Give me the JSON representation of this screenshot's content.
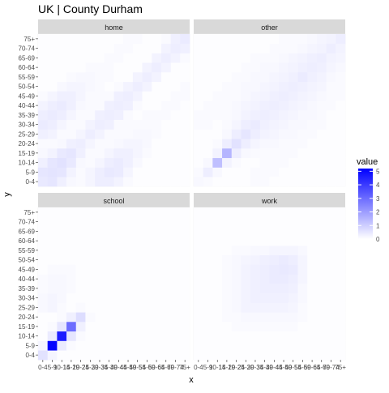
{
  "chart_data": {
    "type": "heatmap",
    "title": "UK | County Durham",
    "xlabel": "x",
    "ylabel": "y",
    "facets": [
      "home",
      "other",
      "school",
      "work"
    ],
    "age_groups": [
      "0-4",
      "5-9",
      "10-14",
      "15-19",
      "20-24",
      "25-29",
      "30-34",
      "35-39",
      "40-44",
      "45-49",
      "50-54",
      "55-59",
      "60-64",
      "65-69",
      "70-74",
      "75+"
    ],
    "legend": {
      "title": "value",
      "ticks": [
        0,
        1,
        2,
        3,
        4,
        5
      ],
      "low_color": "#ffffff",
      "high_color": "#0000ff",
      "min": 0,
      "max": 5.2
    },
    "matrices": {
      "home": [
        [
          0.45,
          0.5,
          0.3,
          0.15,
          0.1,
          0.2,
          0.35,
          0.35,
          0.25,
          0.1,
          0.05,
          0.05,
          0.05,
          0.05,
          0.05,
          0.05
        ],
        [
          0.5,
          0.55,
          0.5,
          0.25,
          0.1,
          0.2,
          0.35,
          0.45,
          0.4,
          0.2,
          0.05,
          0.05,
          0.05,
          0.05,
          0.05,
          0.05
        ],
        [
          0.3,
          0.5,
          0.6,
          0.45,
          0.15,
          0.1,
          0.2,
          0.35,
          0.4,
          0.3,
          0.15,
          0.05,
          0.05,
          0.05,
          0.05,
          0.05
        ],
        [
          0.15,
          0.25,
          0.45,
          0.5,
          0.3,
          0.1,
          0.1,
          0.2,
          0.3,
          0.3,
          0.2,
          0.1,
          0.05,
          0.05,
          0.05,
          0.05
        ],
        [
          0.1,
          0.1,
          0.15,
          0.3,
          0.35,
          0.2,
          0.1,
          0.1,
          0.15,
          0.2,
          0.2,
          0.15,
          0.05,
          0.05,
          0.05,
          0.05
        ],
        [
          0.3,
          0.25,
          0.1,
          0.1,
          0.2,
          0.35,
          0.25,
          0.1,
          0.1,
          0.1,
          0.15,
          0.15,
          0.1,
          0.05,
          0.05,
          0.05
        ],
        [
          0.4,
          0.35,
          0.2,
          0.1,
          0.1,
          0.25,
          0.35,
          0.3,
          0.1,
          0.1,
          0.1,
          0.1,
          0.1,
          0.05,
          0.05,
          0.05
        ],
        [
          0.35,
          0.4,
          0.35,
          0.2,
          0.1,
          0.1,
          0.3,
          0.35,
          0.3,
          0.1,
          0.05,
          0.1,
          0.1,
          0.1,
          0.05,
          0.05
        ],
        [
          0.25,
          0.35,
          0.4,
          0.3,
          0.15,
          0.1,
          0.1,
          0.3,
          0.35,
          0.3,
          0.1,
          0.05,
          0.05,
          0.1,
          0.1,
          0.05
        ],
        [
          0.1,
          0.2,
          0.3,
          0.3,
          0.2,
          0.1,
          0.1,
          0.1,
          0.3,
          0.35,
          0.25,
          0.05,
          0.05,
          0.05,
          0.1,
          0.1
        ],
        [
          0.05,
          0.05,
          0.15,
          0.2,
          0.2,
          0.15,
          0.1,
          0.05,
          0.1,
          0.25,
          0.35,
          0.25,
          0.05,
          0.05,
          0.05,
          0.1
        ],
        [
          0.05,
          0.05,
          0.05,
          0.1,
          0.15,
          0.15,
          0.1,
          0.1,
          0.05,
          0.05,
          0.25,
          0.35,
          0.25,
          0.05,
          0.05,
          0.05
        ],
        [
          0.05,
          0.05,
          0.05,
          0.05,
          0.05,
          0.1,
          0.1,
          0.1,
          0.05,
          0.05,
          0.05,
          0.25,
          0.35,
          0.25,
          0.05,
          0.05
        ],
        [
          0.05,
          0.05,
          0.05,
          0.05,
          0.05,
          0.05,
          0.05,
          0.1,
          0.1,
          0.05,
          0.05,
          0.05,
          0.25,
          0.35,
          0.25,
          0.1
        ],
        [
          0.05,
          0.05,
          0.05,
          0.05,
          0.05,
          0.05,
          0.05,
          0.05,
          0.1,
          0.1,
          0.05,
          0.05,
          0.05,
          0.25,
          0.35,
          0.3
        ],
        [
          0.05,
          0.05,
          0.05,
          0.05,
          0.05,
          0.05,
          0.05,
          0.05,
          0.05,
          0.1,
          0.1,
          0.05,
          0.05,
          0.1,
          0.3,
          0.4
        ]
      ],
      "other": [
        [
          0.15,
          0.1,
          0.05,
          0.05,
          0.05,
          0.05,
          0.1,
          0.1,
          0.05,
          0.05,
          0.05,
          0.05,
          0.05,
          0.05,
          0.05,
          0.05
        ],
        [
          0.1,
          0.35,
          0.15,
          0.05,
          0.05,
          0.05,
          0.1,
          0.1,
          0.1,
          0.05,
          0.05,
          0.05,
          0.05,
          0.05,
          0.05,
          0.05
        ],
        [
          0.05,
          0.15,
          1.3,
          0.25,
          0.1,
          0.05,
          0.05,
          0.1,
          0.1,
          0.1,
          0.05,
          0.05,
          0.05,
          0.05,
          0.05,
          0.05
        ],
        [
          0.05,
          0.05,
          0.25,
          1.5,
          0.35,
          0.15,
          0.1,
          0.1,
          0.1,
          0.1,
          0.1,
          0.05,
          0.05,
          0.05,
          0.05,
          0.05
        ],
        [
          0.05,
          0.05,
          0.1,
          0.35,
          0.6,
          0.35,
          0.2,
          0.15,
          0.15,
          0.1,
          0.1,
          0.1,
          0.05,
          0.05,
          0.05,
          0.05
        ],
        [
          0.05,
          0.05,
          0.05,
          0.15,
          0.35,
          0.5,
          0.35,
          0.25,
          0.2,
          0.15,
          0.15,
          0.1,
          0.1,
          0.05,
          0.05,
          0.05
        ],
        [
          0.1,
          0.1,
          0.05,
          0.1,
          0.2,
          0.35,
          0.4,
          0.3,
          0.25,
          0.2,
          0.15,
          0.15,
          0.1,
          0.1,
          0.05,
          0.05
        ],
        [
          0.1,
          0.1,
          0.1,
          0.1,
          0.15,
          0.25,
          0.3,
          0.35,
          0.3,
          0.25,
          0.2,
          0.15,
          0.15,
          0.1,
          0.05,
          0.05
        ],
        [
          0.05,
          0.1,
          0.1,
          0.1,
          0.15,
          0.2,
          0.25,
          0.3,
          0.35,
          0.3,
          0.25,
          0.2,
          0.15,
          0.1,
          0.1,
          0.05
        ],
        [
          0.05,
          0.05,
          0.1,
          0.1,
          0.1,
          0.15,
          0.2,
          0.25,
          0.3,
          0.35,
          0.3,
          0.25,
          0.2,
          0.15,
          0.1,
          0.1
        ],
        [
          0.05,
          0.05,
          0.05,
          0.1,
          0.1,
          0.15,
          0.15,
          0.2,
          0.25,
          0.3,
          0.35,
          0.3,
          0.25,
          0.2,
          0.1,
          0.1
        ],
        [
          0.05,
          0.05,
          0.05,
          0.05,
          0.1,
          0.1,
          0.15,
          0.15,
          0.2,
          0.25,
          0.3,
          0.4,
          0.3,
          0.25,
          0.15,
          0.1
        ],
        [
          0.05,
          0.05,
          0.05,
          0.05,
          0.05,
          0.1,
          0.1,
          0.15,
          0.15,
          0.2,
          0.25,
          0.3,
          0.35,
          0.3,
          0.2,
          0.15
        ],
        [
          0.05,
          0.05,
          0.05,
          0.05,
          0.05,
          0.05,
          0.1,
          0.1,
          0.1,
          0.15,
          0.2,
          0.25,
          0.3,
          0.35,
          0.25,
          0.2
        ],
        [
          0.05,
          0.05,
          0.05,
          0.05,
          0.05,
          0.05,
          0.05,
          0.05,
          0.1,
          0.1,
          0.1,
          0.15,
          0.2,
          0.25,
          0.35,
          0.25
        ],
        [
          0.05,
          0.05,
          0.05,
          0.05,
          0.05,
          0.05,
          0.05,
          0.05,
          0.05,
          0.1,
          0.1,
          0.1,
          0.15,
          0.2,
          0.25,
          0.35
        ]
      ],
      "school": [
        [
          0.6,
          0.2,
          0.05,
          0.05,
          0.05,
          0.05,
          0.05,
          0.05,
          0.05,
          0.05,
          0.05,
          0.05,
          0.05,
          0.05,
          0.05,
          0.05
        ],
        [
          0.2,
          5.1,
          0.4,
          0.1,
          0.05,
          0.05,
          0.05,
          0.05,
          0.05,
          0.05,
          0.05,
          0.05,
          0.05,
          0.05,
          0.05,
          0.05
        ],
        [
          0.05,
          0.4,
          4.6,
          0.5,
          0.1,
          0.05,
          0.05,
          0.05,
          0.05,
          0.05,
          0.05,
          0.05,
          0.05,
          0.05,
          0.05,
          0.05
        ],
        [
          0.05,
          0.1,
          0.5,
          3.0,
          0.3,
          0.05,
          0.05,
          0.05,
          0.05,
          0.05,
          0.05,
          0.05,
          0.05,
          0.05,
          0.05,
          0.05
        ],
        [
          0.05,
          0.05,
          0.1,
          0.3,
          0.7,
          0.1,
          0.05,
          0.05,
          0.05,
          0.05,
          0.05,
          0.05,
          0.05,
          0.05,
          0.05,
          0.05
        ],
        [
          0.15,
          0.2,
          0.1,
          0.05,
          0.1,
          0.05,
          0.05,
          0.05,
          0.05,
          0.05,
          0.05,
          0.05,
          0.05,
          0.05,
          0.05,
          0.05
        ],
        [
          0.15,
          0.2,
          0.15,
          0.05,
          0.05,
          0.05,
          0.05,
          0.05,
          0.05,
          0.05,
          0.05,
          0.05,
          0.05,
          0.05,
          0.05,
          0.05
        ],
        [
          0.1,
          0.15,
          0.15,
          0.1,
          0.05,
          0.05,
          0.05,
          0.05,
          0.05,
          0.05,
          0.05,
          0.05,
          0.05,
          0.05,
          0.05,
          0.05
        ],
        [
          0.1,
          0.15,
          0.15,
          0.1,
          0.05,
          0.05,
          0.05,
          0.05,
          0.05,
          0.05,
          0.05,
          0.05,
          0.05,
          0.05,
          0.05,
          0.05
        ],
        [
          0.05,
          0.1,
          0.1,
          0.1,
          0.05,
          0.05,
          0.05,
          0.05,
          0.05,
          0.05,
          0.05,
          0.05,
          0.05,
          0.05,
          0.05,
          0.05
        ],
        [
          0.05,
          0.05,
          0.05,
          0.05,
          0.05,
          0.05,
          0.05,
          0.05,
          0.05,
          0.05,
          0.05,
          0.05,
          0.05,
          0.05,
          0.05,
          0.05
        ],
        [
          0.05,
          0.05,
          0.05,
          0.05,
          0.05,
          0.05,
          0.05,
          0.05,
          0.05,
          0.05,
          0.05,
          0.05,
          0.05,
          0.05,
          0.05,
          0.05
        ],
        [
          0.05,
          0.05,
          0.05,
          0.05,
          0.05,
          0.05,
          0.05,
          0.05,
          0.05,
          0.05,
          0.05,
          0.05,
          0.05,
          0.05,
          0.05,
          0.05
        ],
        [
          0.05,
          0.05,
          0.05,
          0.05,
          0.05,
          0.05,
          0.05,
          0.05,
          0.05,
          0.05,
          0.05,
          0.05,
          0.05,
          0.05,
          0.05,
          0.05
        ],
        [
          0.05,
          0.05,
          0.05,
          0.05,
          0.05,
          0.05,
          0.05,
          0.05,
          0.05,
          0.05,
          0.05,
          0.05,
          0.05,
          0.05,
          0.05,
          0.05
        ],
        [
          0.05,
          0.05,
          0.05,
          0.05,
          0.05,
          0.05,
          0.05,
          0.05,
          0.05,
          0.05,
          0.05,
          0.05,
          0.05,
          0.05,
          0.05,
          0.05
        ]
      ],
      "work": [
        [
          0.05,
          0.05,
          0.05,
          0.05,
          0.05,
          0.05,
          0.05,
          0.05,
          0.05,
          0.05,
          0.05,
          0.05,
          0.05,
          0.05,
          0.05,
          0.05
        ],
        [
          0.05,
          0.05,
          0.05,
          0.05,
          0.05,
          0.05,
          0.05,
          0.05,
          0.05,
          0.05,
          0.05,
          0.05,
          0.05,
          0.05,
          0.05,
          0.05
        ],
        [
          0.05,
          0.05,
          0.05,
          0.05,
          0.05,
          0.05,
          0.05,
          0.05,
          0.05,
          0.05,
          0.05,
          0.05,
          0.05,
          0.05,
          0.05,
          0.05
        ],
        [
          0.05,
          0.05,
          0.05,
          0.05,
          0.1,
          0.1,
          0.1,
          0.1,
          0.1,
          0.1,
          0.1,
          0.05,
          0.05,
          0.05,
          0.05,
          0.05
        ],
        [
          0.05,
          0.05,
          0.05,
          0.1,
          0.1,
          0.15,
          0.15,
          0.15,
          0.15,
          0.15,
          0.15,
          0.1,
          0.05,
          0.05,
          0.05,
          0.05
        ],
        [
          0.05,
          0.05,
          0.05,
          0.1,
          0.15,
          0.25,
          0.25,
          0.25,
          0.25,
          0.25,
          0.2,
          0.1,
          0.05,
          0.05,
          0.05,
          0.05
        ],
        [
          0.05,
          0.05,
          0.05,
          0.1,
          0.15,
          0.25,
          0.3,
          0.3,
          0.3,
          0.3,
          0.25,
          0.15,
          0.05,
          0.05,
          0.05,
          0.05
        ],
        [
          0.05,
          0.05,
          0.05,
          0.1,
          0.15,
          0.25,
          0.3,
          0.35,
          0.35,
          0.35,
          0.3,
          0.15,
          0.05,
          0.05,
          0.05,
          0.05
        ],
        [
          0.05,
          0.05,
          0.05,
          0.1,
          0.15,
          0.25,
          0.3,
          0.35,
          0.4,
          0.4,
          0.35,
          0.2,
          0.05,
          0.05,
          0.05,
          0.05
        ],
        [
          0.05,
          0.05,
          0.05,
          0.1,
          0.15,
          0.25,
          0.3,
          0.35,
          0.4,
          0.45,
          0.4,
          0.2,
          0.05,
          0.05,
          0.05,
          0.05
        ],
        [
          0.05,
          0.05,
          0.05,
          0.1,
          0.15,
          0.2,
          0.25,
          0.3,
          0.35,
          0.4,
          0.35,
          0.2,
          0.05,
          0.05,
          0.05,
          0.05
        ],
        [
          0.05,
          0.05,
          0.05,
          0.05,
          0.1,
          0.1,
          0.15,
          0.15,
          0.2,
          0.2,
          0.2,
          0.15,
          0.05,
          0.05,
          0.05,
          0.05
        ],
        [
          0.05,
          0.05,
          0.05,
          0.05,
          0.05,
          0.05,
          0.05,
          0.05,
          0.05,
          0.05,
          0.05,
          0.05,
          0.05,
          0.05,
          0.05,
          0.05
        ],
        [
          0.05,
          0.05,
          0.05,
          0.05,
          0.05,
          0.05,
          0.05,
          0.05,
          0.05,
          0.05,
          0.05,
          0.05,
          0.05,
          0.05,
          0.05,
          0.05
        ],
        [
          0.05,
          0.05,
          0.05,
          0.05,
          0.05,
          0.05,
          0.05,
          0.05,
          0.05,
          0.05,
          0.05,
          0.05,
          0.05,
          0.05,
          0.05,
          0.05
        ],
        [
          0.05,
          0.05,
          0.05,
          0.05,
          0.05,
          0.05,
          0.05,
          0.05,
          0.05,
          0.05,
          0.05,
          0.05,
          0.05,
          0.05,
          0.05,
          0.05
        ]
      ]
    }
  }
}
